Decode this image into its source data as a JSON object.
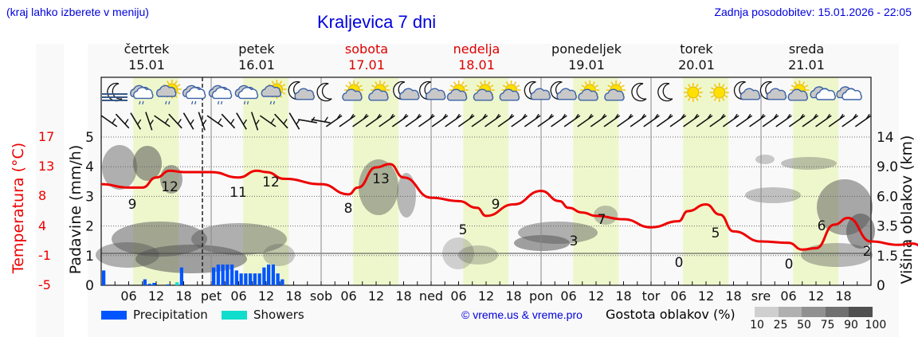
{
  "header": {
    "hint": "(kraj lahko izberete v meniju)",
    "title": "Kraljevica 7 dni",
    "updated": "Zadnja posodobitev: 15.01.2026 - 22:05"
  },
  "days": [
    {
      "name": "četrtek",
      "date": "15.01",
      "weekend": false
    },
    {
      "name": "petek",
      "date": "16.01",
      "weekend": false
    },
    {
      "name": "sobota",
      "date": "17.01",
      "weekend": true
    },
    {
      "name": "nedelja",
      "date": "18.01",
      "weekend": true
    },
    {
      "name": "ponedeljek",
      "date": "19.01",
      "weekend": false
    },
    {
      "name": "torek",
      "date": "20.01",
      "weekend": false
    },
    {
      "name": "sreda",
      "date": "21.01",
      "weekend": false
    }
  ],
  "axes": {
    "temp_label": "Temperatura (°C)",
    "temp_ticks": [
      "17",
      "13",
      "8",
      "4",
      "-1",
      "-5"
    ],
    "precip_label": "Padavine (mm/h)",
    "precip_ticks": [
      "5",
      "4",
      "3",
      "2",
      "1",
      "0"
    ],
    "cloud_label": "Višina oblakov (km)",
    "cloud_ticks": [
      "14",
      "9.0",
      "6.0",
      "3.5",
      "1.5",
      "0"
    ],
    "x_ticks": [
      "06",
      "12",
      "18",
      "pet",
      "06",
      "12",
      "18",
      "sob",
      "06",
      "12",
      "18",
      "ned",
      "06",
      "12",
      "18",
      "pon",
      "06",
      "12",
      "18",
      "tor",
      "06",
      "12",
      "18",
      "sre",
      "06",
      "12",
      "18"
    ]
  },
  "legend": {
    "precipitation": "Precipitation",
    "showers": "Showers",
    "precip_color": "#0055ff",
    "showers_color": "#11ddcc",
    "copyright": "© vreme.us & vreme.pro",
    "cloud_density_label": "Gostota oblakov (%)",
    "cloud_density_ticks": [
      "10",
      "25",
      "50",
      "75",
      "90",
      "100"
    ]
  },
  "weather_icons": [
    "fog-moon",
    "cloud-drizzle",
    "sun-cloud-drizzle",
    "cloud-drizzle",
    "cloud-drizzle",
    "cloud-drizzle",
    "sun-cloud-drizzle",
    "moon-cloud",
    "moon",
    "sun-cloud",
    "sun-cloud",
    "moon-cloud",
    "moon-cloud",
    "sun-cloud",
    "sun-cloud",
    "sun-cloud",
    "moon-cloud",
    "moon-cloud",
    "sun-cloud",
    "sun-cloud",
    "moon",
    "moon",
    "sun",
    "sun",
    "moon-cloud",
    "moon-cloud",
    "sun-cloud",
    "cloud",
    "cloud"
  ],
  "chart_data": {
    "type": "line",
    "title": "Kraljevica 7 dni",
    "xlabel": "",
    "ylabel": "Temperatura (°C) / Padavine (mm/h)",
    "ylim_temp": [
      -5,
      17
    ],
    "ylim_precip": [
      0,
      5
    ],
    "grid": true,
    "series": [
      {
        "name": "Temperature (°C)",
        "x_hours": [
          0,
          6,
          9,
          12,
          15,
          18,
          24,
          30,
          34,
          36,
          40,
          48,
          54,
          56,
          60,
          63,
          66,
          72,
          78,
          82,
          84,
          90,
          96,
          100,
          102,
          105,
          108,
          114,
          120,
          126,
          128,
          132,
          135,
          138,
          144,
          150,
          153,
          156,
          160,
          163,
          168,
          174,
          177,
          180,
          184,
          186
        ],
        "values": [
          10,
          9.5,
          9.5,
          11,
          12,
          11.8,
          11.8,
          11,
          12,
          11.8,
          10.8,
          10,
          8.5,
          9.5,
          12.5,
          13,
          11,
          8,
          7.5,
          6.5,
          5.3,
          7,
          9,
          7.5,
          6.5,
          5.8,
          5.3,
          4.8,
          3.6,
          4.5,
          6,
          7,
          5.5,
          3,
          1.5,
          1.3,
          0.3,
          0.5,
          4,
          5,
          1.5,
          1,
          1.2,
          0.5,
          0.4,
          3
        ]
      },
      {
        "name": "Precipitation (mm/h)",
        "bars": [
          {
            "hour": 0,
            "value": 0.5
          },
          {
            "hour": 9,
            "value": 0.2
          },
          {
            "hour": 10,
            "value": 0.05
          },
          {
            "hour": 11,
            "value": 0.08
          },
          {
            "hour": 14,
            "value": 0.03
          },
          {
            "hour": 17,
            "value": 0.6
          },
          {
            "hour": 24,
            "value": 0.6
          },
          {
            "hour": 25,
            "value": 0.7
          },
          {
            "hour": 26,
            "value": 0.7
          },
          {
            "hour": 27,
            "value": 0.7
          },
          {
            "hour": 28,
            "value": 0.7
          },
          {
            "hour": 29,
            "value": 0.5
          },
          {
            "hour": 30,
            "value": 0.4
          },
          {
            "hour": 31,
            "value": 0.4
          },
          {
            "hour": 32,
            "value": 0.4
          },
          {
            "hour": 33,
            "value": 0.4
          },
          {
            "hour": 34,
            "value": 0.4
          },
          {
            "hour": 35,
            "value": 0.6
          },
          {
            "hour": 36,
            "value": 0.7
          },
          {
            "hour": 37,
            "value": 0.7
          },
          {
            "hour": 38,
            "value": 0.4
          },
          {
            "hour": 39,
            "value": 0.2
          }
        ]
      },
      {
        "name": "Showers (mm/h)",
        "bars": [
          {
            "hour": 16,
            "value": 0.1
          }
        ]
      }
    ],
    "temp_labels": [
      {
        "day": 0,
        "hour": 6,
        "value": "9"
      },
      {
        "day": 0,
        "hour": 15,
        "value": "12"
      },
      {
        "day": 1,
        "hour": 6,
        "value": "11"
      },
      {
        "day": 1,
        "hour": 13,
        "value": "12"
      },
      {
        "day": 2,
        "hour": 6,
        "value": "8"
      },
      {
        "day": 2,
        "hour": 14,
        "value": "13"
      },
      {
        "day": 3,
        "hour": 6,
        "value": "5"
      },
      {
        "day": 3,
        "hour": 13,
        "value": "9"
      },
      {
        "day": 4,
        "hour": 7,
        "value": "3"
      },
      {
        "day": 4,
        "hour": 13,
        "value": "7"
      },
      {
        "day": 5,
        "hour": 6,
        "value": "0"
      },
      {
        "day": 5,
        "hour": 14,
        "value": "5"
      },
      {
        "day": 6,
        "hour": 6,
        "value": "0"
      },
      {
        "day": 6,
        "hour": 13,
        "value": "6"
      },
      {
        "day": 6,
        "hour": 21,
        "value": "2"
      }
    ],
    "annotations": [
      "current time marker at 15.01 ~22:00 (dashed line)"
    ]
  }
}
